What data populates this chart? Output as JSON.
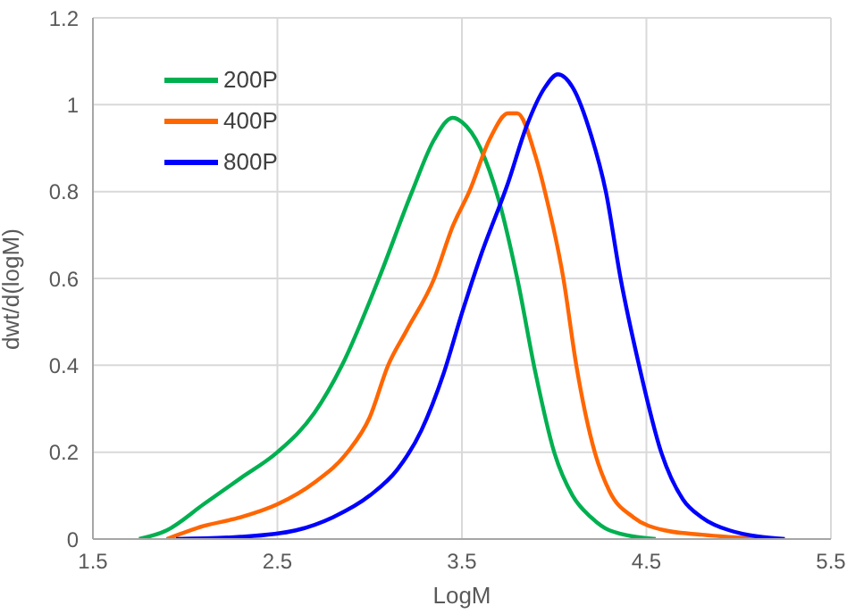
{
  "chart_data": {
    "type": "line",
    "xlabel": "LogM",
    "ylabel": "dwt/d(logM)",
    "xlim": [
      1.5,
      5.5
    ],
    "xticks": [
      1.5,
      2.5,
      3.5,
      4.5,
      5.5
    ],
    "ylim": [
      0,
      1.2
    ],
    "yticks": [
      0,
      0.2,
      0.4,
      0.6,
      0.8,
      1,
      1.2
    ],
    "grid": true,
    "legend": "top left",
    "marker": "none",
    "line_style": "solid",
    "series": [
      {
        "name": "200P",
        "color": "#00b050",
        "x": [
          1.75,
          1.9,
          2.1,
          2.3,
          2.5,
          2.7,
          2.85,
          3.05,
          3.23,
          3.35,
          3.45,
          3.5,
          3.6,
          3.7,
          3.8,
          3.9,
          4.0,
          4.1,
          4.2,
          4.3,
          4.55
        ],
        "values": [
          0,
          0.02,
          0.08,
          0.14,
          0.2,
          0.29,
          0.4,
          0.6,
          0.8,
          0.92,
          0.97,
          0.96,
          0.9,
          0.78,
          0.6,
          0.38,
          0.2,
          0.1,
          0.05,
          0.02,
          0
        ]
      },
      {
        "name": "400P",
        "color": "#ff6600",
        "x": [
          1.9,
          2.1,
          2.3,
          2.5,
          2.7,
          2.88,
          3.0,
          3.1,
          3.2,
          3.35,
          3.45,
          3.54,
          3.65,
          3.75,
          3.8,
          3.9,
          3.95,
          4.05,
          4.12,
          4.22,
          4.3,
          4.43,
          4.6,
          4.8,
          5.15
        ],
        "values": [
          0,
          0.03,
          0.05,
          0.08,
          0.13,
          0.2,
          0.28,
          0.4,
          0.48,
          0.6,
          0.72,
          0.8,
          0.92,
          0.98,
          0.98,
          0.88,
          0.8,
          0.6,
          0.4,
          0.2,
          0.11,
          0.05,
          0.02,
          0.01,
          0
        ]
      },
      {
        "name": "800P",
        "color": "#0000ff",
        "x": [
          1.95,
          2.3,
          2.6,
          2.8,
          3.0,
          3.15,
          3.28,
          3.4,
          3.5,
          3.6,
          3.75,
          3.85,
          3.95,
          4.02,
          4.1,
          4.2,
          4.28,
          4.36,
          4.46,
          4.58,
          4.7,
          4.8,
          4.95,
          5.25
        ],
        "values": [
          0,
          0.005,
          0.02,
          0.05,
          0.1,
          0.16,
          0.25,
          0.38,
          0.52,
          0.65,
          0.82,
          0.95,
          1.04,
          1.07,
          1.04,
          0.93,
          0.8,
          0.6,
          0.4,
          0.2,
          0.09,
          0.05,
          0.02,
          0
        ]
      }
    ]
  }
}
